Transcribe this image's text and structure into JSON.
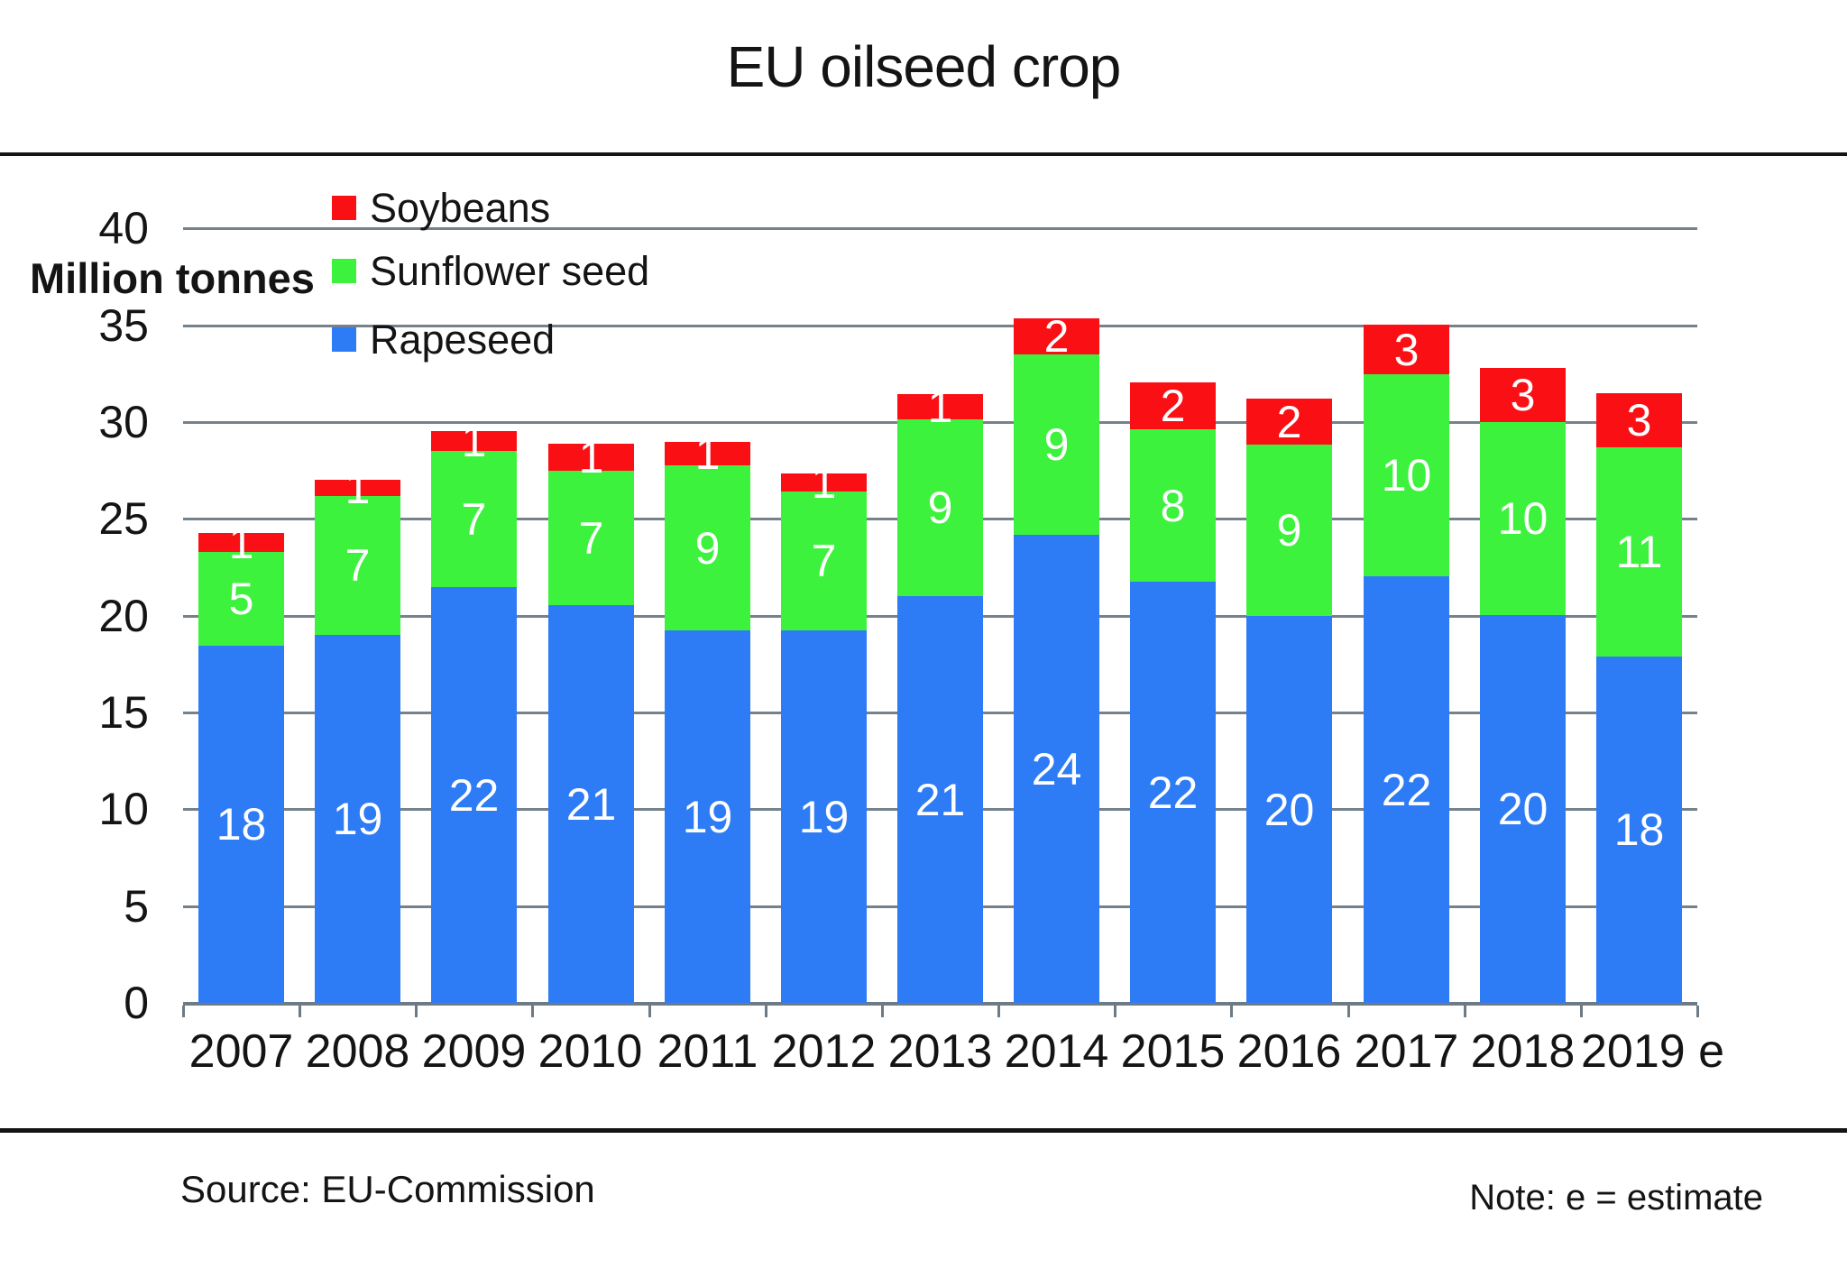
{
  "title": "EU oilseed crop",
  "y_axis": {
    "title": "Million tonnes",
    "ticks": [
      "40",
      "35",
      "30",
      "25",
      "20",
      "15",
      "10",
      "5",
      "0"
    ]
  },
  "legend": {
    "items": [
      {
        "label": "Soybeans",
        "color": "#fa0f15"
      },
      {
        "label": "Sunflower seed",
        "color": "#3df23d"
      },
      {
        "label": "Rapeseed",
        "color": "#2e7bf6"
      }
    ]
  },
  "footer": {
    "source": "Source: EU-Commission",
    "note": "Note: e = estimate"
  },
  "colors": {
    "soybeans": "#fa0f15",
    "sunflower_seed": "#3df23d",
    "rapeseed": "#2e7bf6",
    "gridline": "#75828c",
    "divider": "#141414",
    "bar_label_text": "#ffffff"
  },
  "chart_data": {
    "type": "bar",
    "stacked": true,
    "title": "EU oilseed crop",
    "ylabel": "Million tonnes",
    "xlabel": "",
    "ylim": [
      0,
      40
    ],
    "ytick_step": 5,
    "grid": true,
    "legend_position": "top-left-inside",
    "categories": [
      "2007",
      "2008",
      "2009",
      "2010",
      "2011",
      "2012",
      "2013",
      "2014",
      "2015",
      "2016",
      "2017",
      "2018",
      "2019 e"
    ],
    "series": [
      {
        "name": "Rapeseed",
        "color": "#2e7bf6",
        "labels": [
          18,
          19,
          22,
          21,
          19,
          19,
          21,
          24,
          22,
          20,
          22,
          20,
          18
        ],
        "values": [
          18.45,
          19.0,
          21.5,
          20.55,
          19.25,
          19.25,
          21.0,
          24.2,
          21.75,
          20.0,
          22.05,
          20.05,
          17.9
        ]
      },
      {
        "name": "Sunflower seed",
        "color": "#3df23d",
        "labels": [
          5,
          7,
          7,
          7,
          9,
          7,
          9,
          9,
          8,
          9,
          10,
          10,
          11
        ],
        "values": [
          4.85,
          7.2,
          7.0,
          6.95,
          8.5,
          7.15,
          9.15,
          9.3,
          7.9,
          8.85,
          10.4,
          9.95,
          10.8
        ]
      },
      {
        "name": "Soybeans",
        "color": "#fa0f15",
        "labels": [
          1,
          1,
          1,
          1,
          1,
          1,
          1,
          2,
          2,
          2,
          3,
          3,
          3
        ],
        "values": [
          0.95,
          0.8,
          1.05,
          1.4,
          1.25,
          0.95,
          1.3,
          1.85,
          2.4,
          2.35,
          2.6,
          2.8,
          2.8
        ]
      }
    ],
    "totals_estimated": [
      24.2,
      27.0,
      29.5,
      28.9,
      29.0,
      27.4,
      31.5,
      35.3,
      32.1,
      31.2,
      35.0,
      32.8,
      31.5
    ],
    "note": "e = estimate",
    "source": "EU-Commission"
  }
}
